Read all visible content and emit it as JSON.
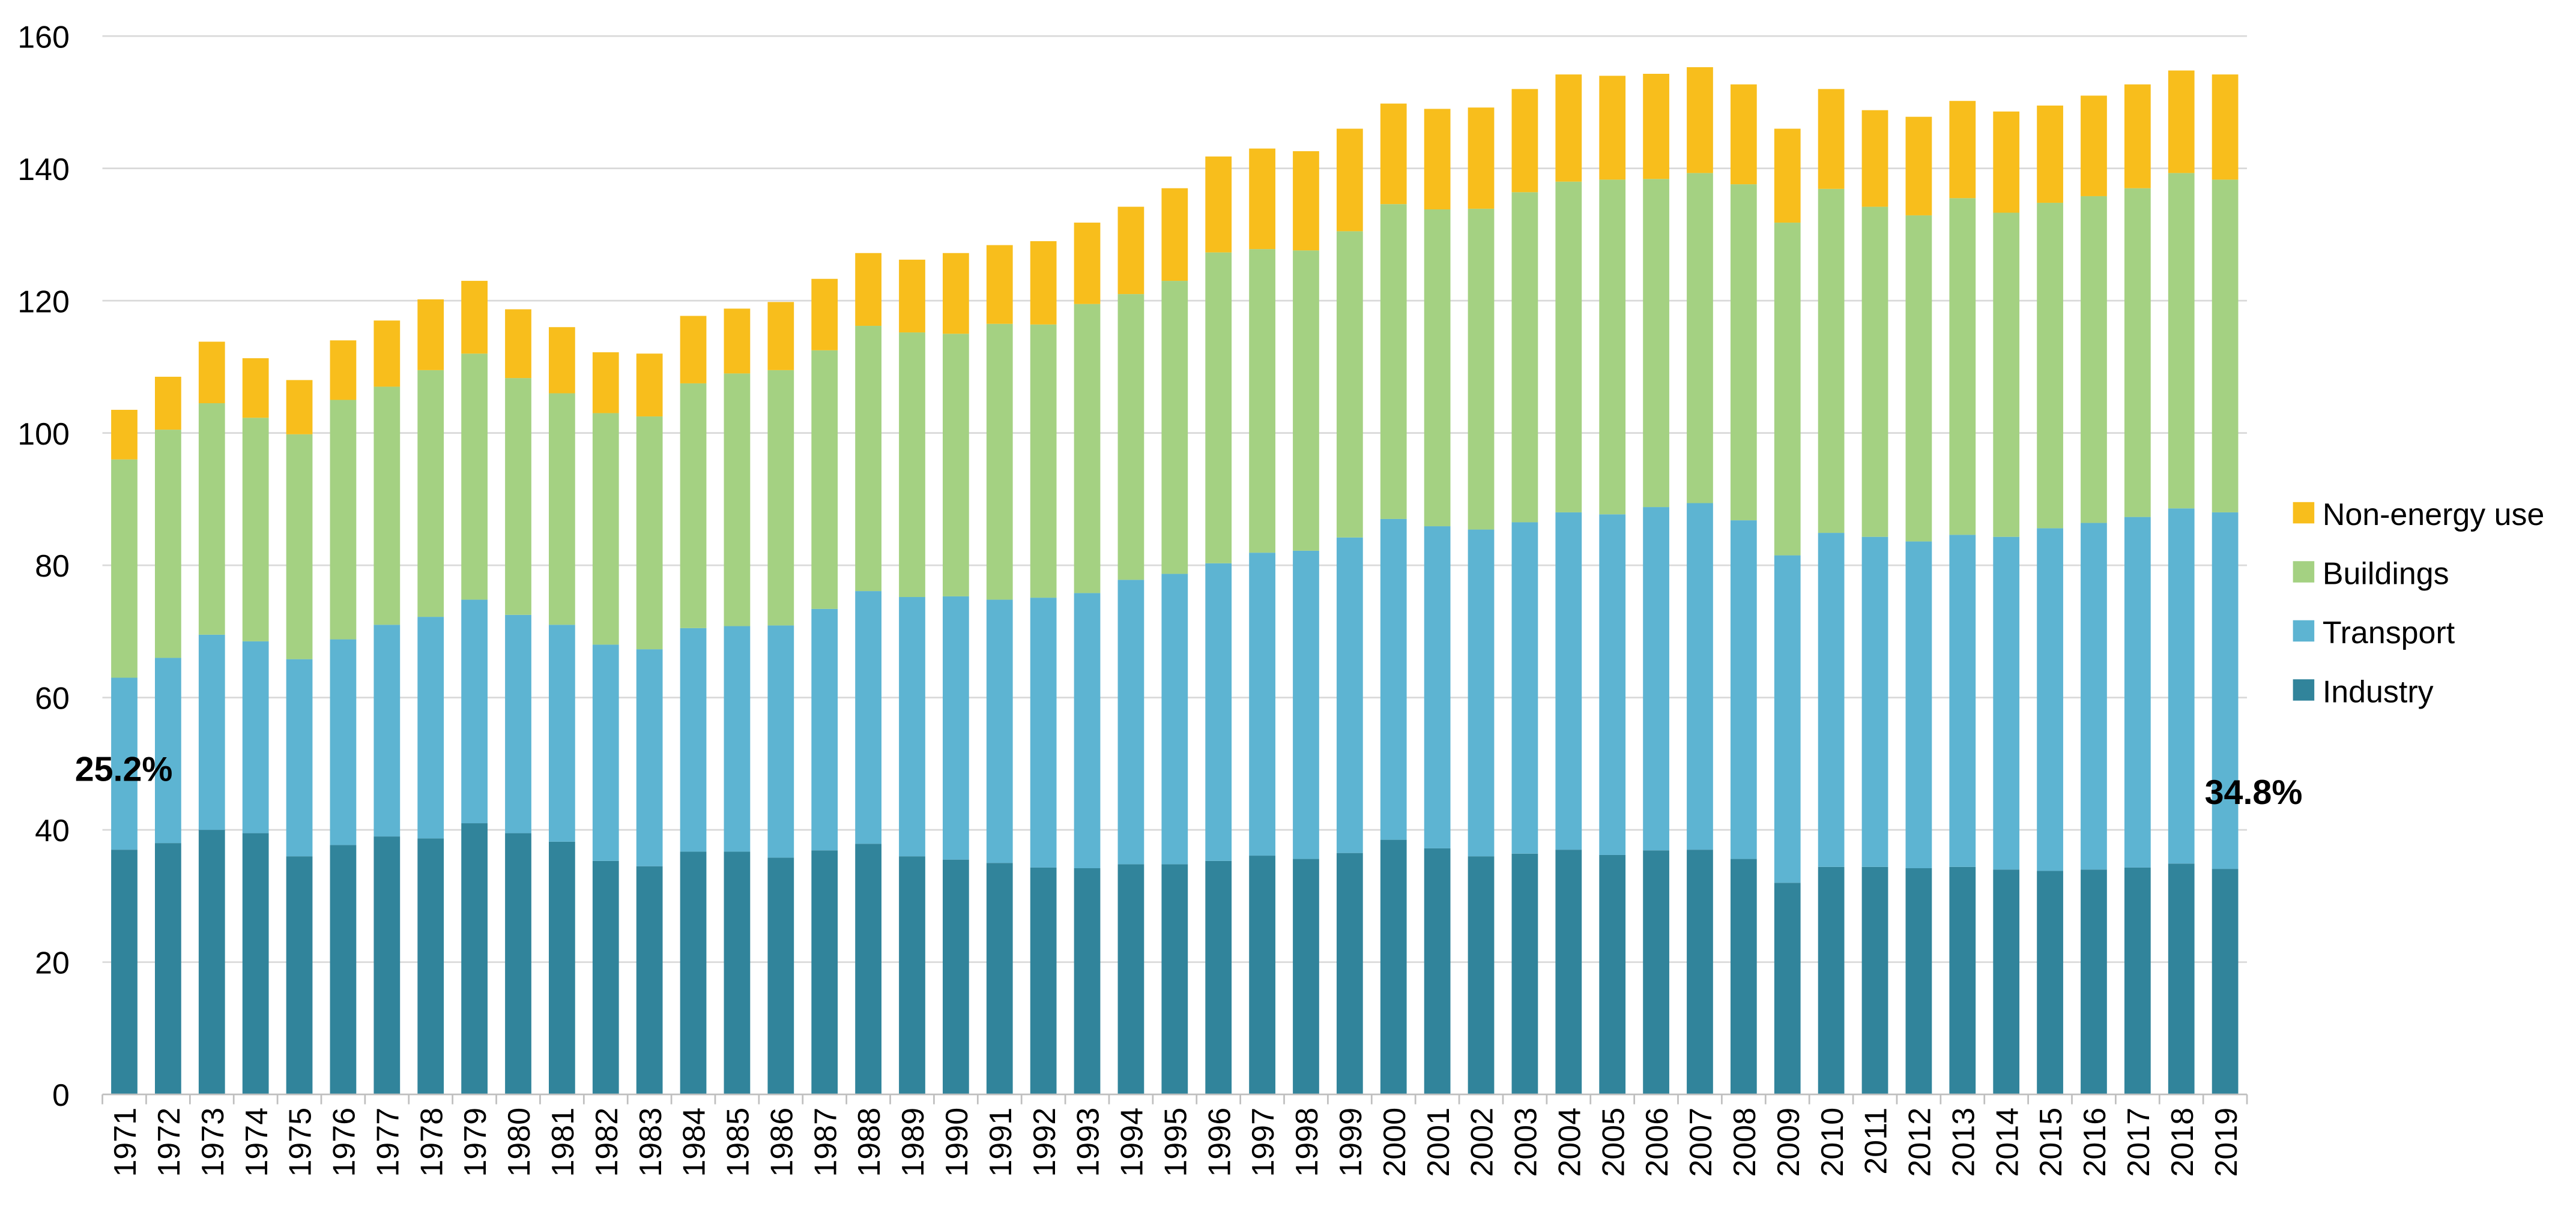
{
  "chart_data": {
    "type": "bar",
    "stacked": true,
    "title": "",
    "xlabel": "",
    "ylabel": "",
    "ylim": [
      0,
      160
    ],
    "yticks": [
      0,
      20,
      40,
      60,
      80,
      100,
      120,
      140,
      160
    ],
    "grid": true,
    "legend_position": "right",
    "categories": [
      "1971",
      "1972",
      "1973",
      "1974",
      "1975",
      "1976",
      "1977",
      "1978",
      "1979",
      "1980",
      "1981",
      "1982",
      "1983",
      "1984",
      "1985",
      "1986",
      "1987",
      "1988",
      "1989",
      "1990",
      "1991",
      "1992",
      "1993",
      "1994",
      "1995",
      "1996",
      "1997",
      "1998",
      "1999",
      "2000",
      "2001",
      "2002",
      "2003",
      "2004",
      "2005",
      "2006",
      "2007",
      "2008",
      "2009",
      "2010",
      "2011",
      "2012",
      "2013",
      "2014",
      "2015",
      "2016",
      "2017",
      "2018",
      "2019"
    ],
    "series": [
      {
        "name": "Industry",
        "color": "#31849b",
        "values": [
          37,
          38,
          40,
          39.5,
          36,
          37.7,
          39,
          38.7,
          41,
          39.5,
          38.2,
          35.3,
          34.5,
          36.7,
          36.7,
          35.8,
          36.9,
          37.9,
          36,
          35.5,
          35,
          34.3,
          34.2,
          34.8,
          34.8,
          35.3,
          36.1,
          35.6,
          36.5,
          38.5,
          37.2,
          36,
          36.4,
          37,
          36.2,
          36.9,
          37,
          35.6,
          32,
          34.4,
          34.4,
          34.2,
          34.4,
          34,
          33.8,
          34,
          34.3,
          34.9,
          34.1
        ]
      },
      {
        "name": "Transport",
        "color": "#5db4d2",
        "values": [
          26,
          28,
          29.5,
          29,
          29.8,
          31.1,
          32,
          33.5,
          33.8,
          33,
          32.8,
          32.7,
          32.8,
          33.8,
          34.1,
          35.1,
          36.5,
          38.2,
          39.2,
          39.8,
          39.8,
          40.8,
          41.6,
          43,
          43.9,
          45,
          45.8,
          46.6,
          47.7,
          48.5,
          48.7,
          49.4,
          50.1,
          51,
          51.5,
          51.9,
          52.4,
          51.2,
          49.5,
          50.5,
          49.9,
          49.4,
          50.2,
          50.3,
          51.8,
          52.4,
          53,
          53.7,
          53.9
        ]
      },
      {
        "name": "Buildings",
        "color": "#a4d182",
        "values": [
          33,
          34.5,
          35,
          33.8,
          34,
          36.2,
          36,
          37.3,
          37.2,
          35.8,
          35,
          35,
          35.2,
          37,
          38.2,
          38.6,
          39.1,
          40.1,
          40,
          39.7,
          41.7,
          41.3,
          43.7,
          43.2,
          44.3,
          47,
          45.9,
          45.4,
          46.3,
          47.6,
          47.9,
          48.5,
          49.9,
          50,
          50.6,
          49.6,
          49.9,
          50.8,
          50.3,
          52,
          49.9,
          49.3,
          50.9,
          49,
          49.2,
          49.4,
          49.7,
          50.7,
          50.3
        ]
      },
      {
        "name": "Non-energy use",
        "color": "#f8be1c",
        "values": [
          7.5,
          8,
          9.3,
          9,
          8.2,
          9,
          10,
          10.7,
          11,
          10.4,
          10,
          9.2,
          9.5,
          10.2,
          9.8,
          10.3,
          10.8,
          11,
          11,
          12.2,
          11.9,
          12.6,
          12.3,
          13.2,
          14,
          14.5,
          15.2,
          15,
          15.5,
          15.2,
          15.2,
          15.3,
          15.6,
          16.2,
          15.7,
          15.9,
          16,
          15.1,
          14.2,
          15.1,
          14.6,
          14.9,
          14.7,
          15.3,
          14.7,
          15.2,
          15.7,
          15.5,
          15.9
        ]
      }
    ],
    "annotations": [
      {
        "text": "25.2%",
        "category": "1971"
      },
      {
        "text": "34.8%",
        "category": "2019"
      }
    ]
  }
}
